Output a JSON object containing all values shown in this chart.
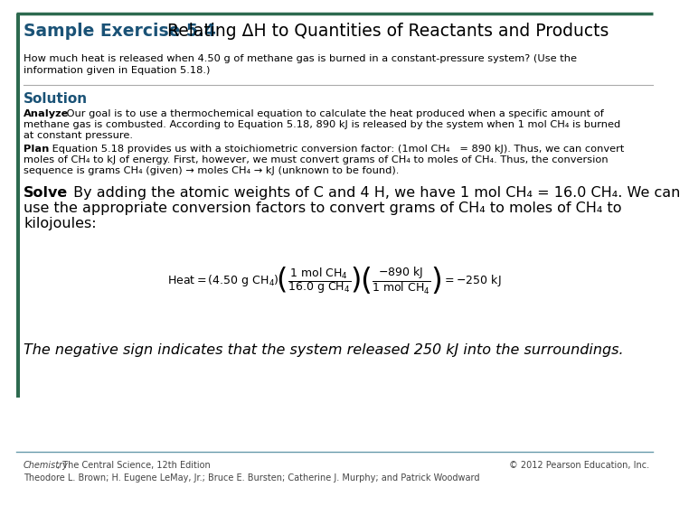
{
  "bg_color": "#ffffff",
  "border_color": "#2d6a4f",
  "title_blue": "#1a5276",
  "title_black": "#000000",
  "solution_blue": "#1a5276",
  "text_color": "#000000",
  "footer_color": "#444444",
  "separator_color": "#aaaaaa",
  "title_label": "Sample Exercise 5.4",
  "title_rest": " Relating ΔH to Quantities of Reactants and Products",
  "question_line1": "How much heat is released when 4.50 g of methane gas is burned in a constant-pressure system? (Use the",
  "question_line2": "information given in Equation 5.18.)",
  "solution_label": "Solution",
  "analyze_bold": "Analyze",
  "analyze_rest": " Our goal is to use a thermochemical equation to calculate the heat produced when a specific amount of",
  "analyze_line2": "methane gas is combusted. According to Equation 5.18, 890 kJ is released by the system when 1 mol CH₄ is burned",
  "analyze_line3": "at constant pressure.",
  "plan_bold": "Plan",
  "plan_rest": " Equation 5.18 provides us with a stoichiometric conversion factor: (1mol CH₄   = 890 kJ). Thus, we can convert",
  "plan_line2": "moles of CH₄ to kJ of energy. First, however, we must convert grams of CH₄ to moles of CH₄. Thus, the conversion",
  "plan_line3": "sequence is grams CH₄ (given) → moles CH₄ → kJ (unknown to be found).",
  "solve_bold": "Solve",
  "solve_rest": " By adding the atomic weights of C and 4 H, we have 1 mol CH₄ = 16.0 CH₄. We can",
  "solve_line2": "use the appropriate conversion factors to convert grams of CH₄ to moles of CH₄ to",
  "solve_line3": "kilojoules:",
  "conclusion": "The negative sign indicates that the system released 250 kJ into the surroundings.",
  "footer_left1_italic": "Chemistry",
  "footer_left1_rest": ", The Central Science, 12th Edition",
  "footer_left2": "Theodore L. Brown; H. Eugene LeMay, Jr.; Bruce E. Bursten; Catherine J. Murphy; and Patrick Woodward",
  "footer_right": "© 2012 Pearson Education, Inc."
}
